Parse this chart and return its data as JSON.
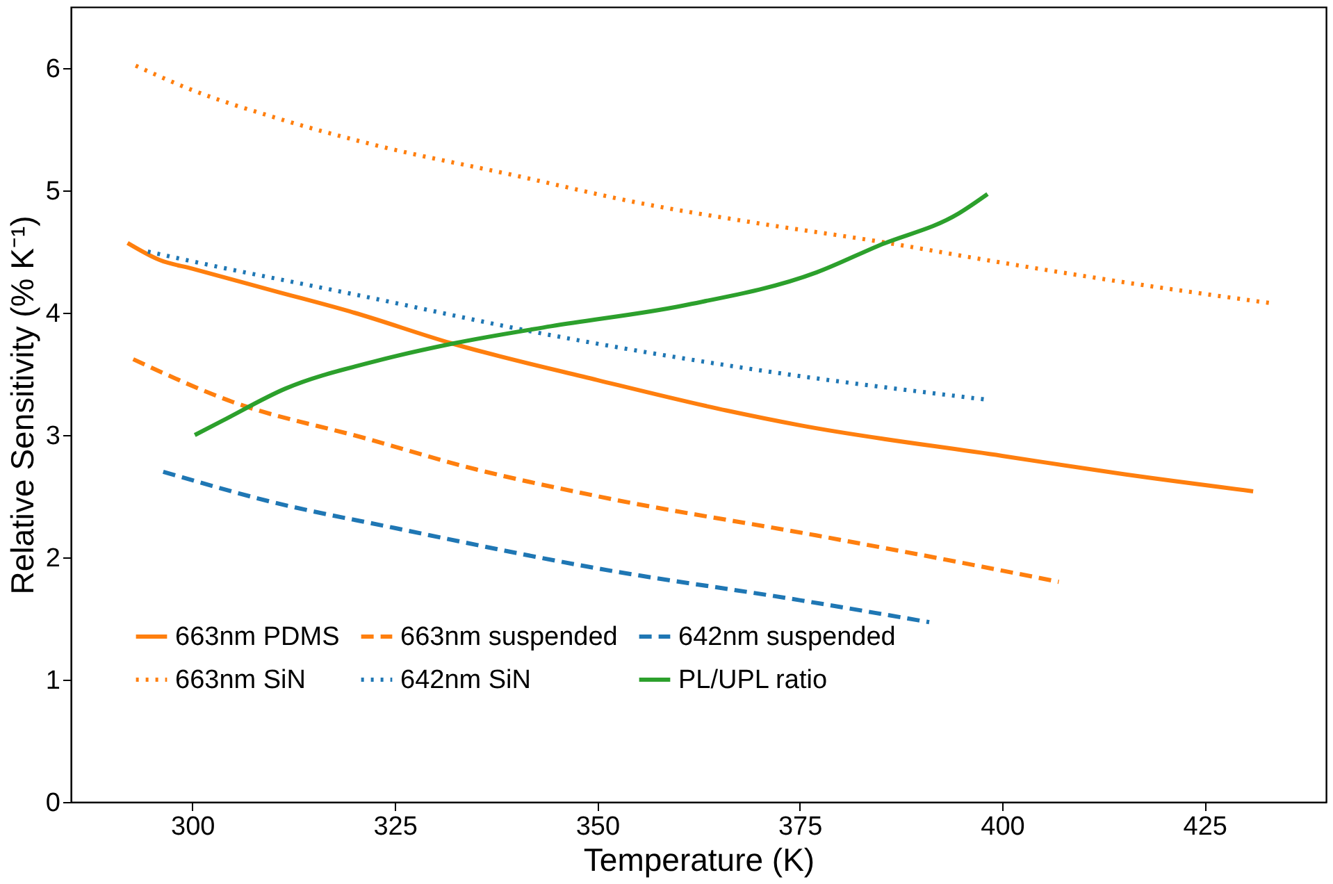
{
  "chart_data": {
    "type": "line",
    "xlabel": "Temperature (K)",
    "ylabel": "Relative Sensitivity (% K⁻¹)",
    "xlim": [
      285,
      440
    ],
    "xticks": [
      300,
      325,
      350,
      375,
      400,
      425
    ],
    "ylim": [
      0,
      6.5
    ],
    "yticks": [
      0,
      1,
      2,
      3,
      4,
      5,
      6
    ],
    "grid": false,
    "legend": "bottom",
    "marker": "none",
    "series": [
      {
        "name": "663nm PDMS",
        "color": "#ff7f0e",
        "line_style": "solid",
        "x": [
          292,
          296,
          300,
          310,
          320,
          332,
          350,
          366,
          375,
          400,
          415,
          431
        ],
        "values": [
          4.57,
          4.43,
          4.36,
          4.18,
          4.0,
          3.75,
          3.45,
          3.2,
          3.08,
          2.83,
          2.68,
          2.54
        ]
      },
      {
        "name": "663nm SiN",
        "color": "#ff7f0e",
        "line_style": "dotted",
        "x": [
          293,
          300,
          310,
          322,
          340,
          355,
          370,
          385,
          399,
          415,
          433
        ],
        "values": [
          6.02,
          5.82,
          5.6,
          5.38,
          5.12,
          4.9,
          4.73,
          4.58,
          4.42,
          4.25,
          4.08
        ]
      },
      {
        "name": "663nm suspended",
        "color": "#ff7f0e",
        "line_style": "dashed",
        "x": [
          292.7,
          305,
          321,
          335,
          350,
          377,
          390,
          407
        ],
        "values": [
          3.62,
          3.27,
          2.98,
          2.72,
          2.5,
          2.18,
          2.02,
          1.8
        ]
      },
      {
        "name": "642nm SiN",
        "color": "#1f77b4",
        "line_style": "dotted",
        "x": [
          294.5,
          300,
          320,
          344,
          370,
          398
        ],
        "values": [
          4.5,
          4.42,
          4.15,
          3.82,
          3.53,
          3.29
        ]
      },
      {
        "name": "642nm suspended",
        "color": "#1f77b4",
        "line_style": "dashed",
        "x": [
          296.4,
          310,
          325,
          350,
          375,
          391
        ],
        "values": [
          2.7,
          2.45,
          2.24,
          1.91,
          1.65,
          1.47
        ]
      },
      {
        "name": "PL/UPL ratio",
        "color": "#2ca02c",
        "line_style": "solid",
        "x": [
          300.3,
          303.8,
          311.5,
          322.4,
          332.3,
          344.3,
          360.7,
          377.1,
          384.8,
          394.6,
          398.2
        ],
        "values": [
          3.0,
          3.12,
          3.38,
          3.6,
          3.75,
          3.89,
          4.06,
          4.33,
          4.55,
          4.81,
          4.97
        ]
      }
    ]
  }
}
